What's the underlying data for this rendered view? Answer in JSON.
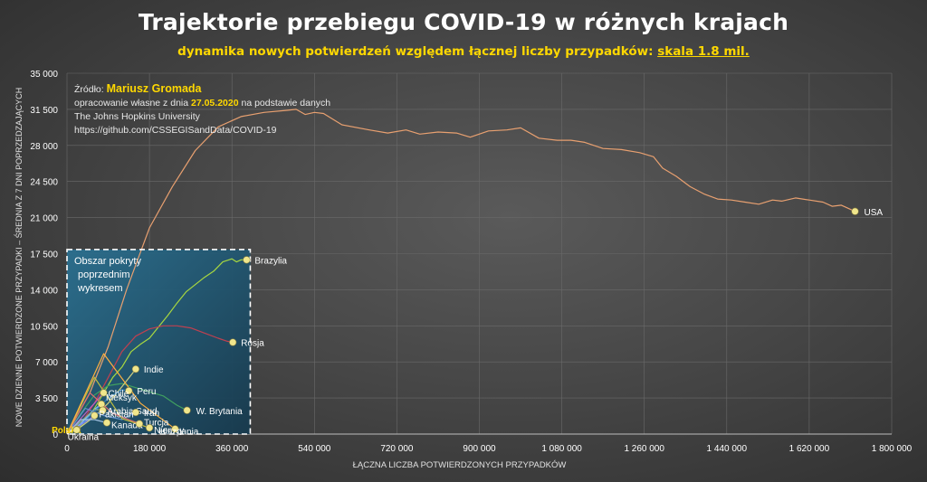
{
  "title": "Trajektorie przebiegu COVID-19 w różnych krajach",
  "subtitle_main": "dynamika nowych potwierdzeń względem łącznej liczby przypadków: ",
  "subtitle_scale": "skala 1.8 mil.",
  "source": {
    "label": "Źródło: ",
    "author": "Mariusz Gromada",
    "line2_pre": "opracowanie własne z dnia ",
    "date": "27.05.2020",
    "line2_post": " na podstawie danych",
    "line3": "The Johns Hopkins University",
    "line4": "https://github.com/CSSEGISandData/COVID-19"
  },
  "inset_label": [
    "Obszar pokryty",
    "poprzednim",
    "wykresem"
  ],
  "colors": {
    "usa": "#e8a070",
    "brazylia": "#a8d840",
    "rosja": "#c04050",
    "marker": "#f0e68c",
    "grid": "#6a6a6a",
    "inset_bg": "#1c5a78",
    "axis_text": "#ffffff"
  },
  "chart_data": {
    "type": "line",
    "xlabel": "ŁĄCZNA LICZBA POTWIERDZONYCH PRZYPADKÓW",
    "ylabel": "NOWE DZIENNE POTWIERDZONE PRZYPADKI – ŚREDNIA Z 7 DNI POPRZEDZAJĄCYCH",
    "xlim": [
      0,
      1800000
    ],
    "ylim": [
      0,
      35000
    ],
    "x_ticks": [
      0,
      180000,
      360000,
      540000,
      720000,
      900000,
      1080000,
      1260000,
      1440000,
      1620000,
      1800000
    ],
    "x_tick_labels": [
      "0",
      "180 000",
      "360 000",
      "540 000",
      "720 000",
      "900 000",
      "1 080 000",
      "1 260 000",
      "1 440 000",
      "1 620 000",
      "1 800 000"
    ],
    "y_ticks": [
      0,
      3500,
      7000,
      10500,
      14000,
      17500,
      21000,
      24500,
      28000,
      31500,
      35000
    ],
    "y_tick_labels": [
      "0",
      "3 500",
      "7 000",
      "10 500",
      "14 000",
      "17 500",
      "21 000",
      "24 500",
      "28 000",
      "31 500",
      "35 000"
    ],
    "grid": true,
    "series": [
      {
        "name": "USA",
        "color": "#e8a070",
        "x": [
          0,
          20000,
          50000,
          90000,
          130000,
          180000,
          230000,
          280000,
          330000,
          380000,
          430000,
          480000,
          500000,
          520000,
          540000,
          560000,
          600000,
          660000,
          700000,
          740000,
          770000,
          810000,
          850000,
          880000,
          920000,
          960000,
          990000,
          1030000,
          1070000,
          1100000,
          1130000,
          1170000,
          1210000,
          1250000,
          1280000,
          1300000,
          1330000,
          1360000,
          1390000,
          1420000,
          1450000,
          1480000,
          1510000,
          1540000,
          1560000,
          1590000,
          1620000,
          1650000,
          1670000,
          1690000,
          1700000,
          1720000
        ],
        "y": [
          0,
          1600,
          4000,
          8500,
          14000,
          20000,
          24000,
          27500,
          29800,
          30800,
          31200,
          31400,
          31500,
          31000,
          31200,
          31100,
          30000,
          29500,
          29200,
          29500,
          29100,
          29300,
          29200,
          28800,
          29400,
          29500,
          29700,
          28700,
          28500,
          28500,
          28300,
          27700,
          27600,
          27300,
          26900,
          25800,
          25000,
          24000,
          23300,
          22800,
          22700,
          22500,
          22300,
          22700,
          22600,
          22900,
          22700,
          22500,
          22100,
          22200,
          22000,
          21600
        ]
      },
      {
        "name": "Brazylia",
        "color": "#a8d840",
        "x": [
          0,
          20000,
          40000,
          60000,
          80000,
          100000,
          120000,
          140000,
          160000,
          180000,
          200000,
          220000,
          240000,
          260000,
          280000,
          300000,
          320000,
          340000,
          360000,
          370000,
          380000,
          392000
        ],
        "y": [
          0,
          500,
          1200,
          2500,
          4000,
          5500,
          6500,
          8000,
          8700,
          9300,
          10400,
          11500,
          12700,
          13800,
          14500,
          15200,
          15800,
          16700,
          17000,
          16700,
          16900,
          16900
        ]
      },
      {
        "name": "Rosja",
        "color": "#c04050",
        "x": [
          0,
          30000,
          60000,
          90000,
          120000,
          150000,
          180000,
          210000,
          240000,
          270000,
          300000,
          330000,
          350000,
          362000
        ],
        "y": [
          0,
          1000,
          3000,
          5500,
          8000,
          9500,
          10200,
          10500,
          10500,
          10300,
          9800,
          9300,
          9000,
          8900
        ]
      },
      {
        "name": "W. Brytania",
        "color": "#40a060",
        "x": [
          0,
          30000,
          60000,
          90000,
          120000,
          150000,
          180000,
          210000,
          240000,
          262000
        ],
        "y": [
          0,
          2000,
          3800,
          4700,
          4900,
          4500,
          4100,
          3700,
          2800,
          2300
        ]
      },
      {
        "name": "Indie",
        "color": "#d0d080",
        "x": [
          0,
          30000,
          60000,
          90000,
          120000,
          150000
        ],
        "y": [
          0,
          700,
          1700,
          3000,
          4600,
          6300
        ]
      },
      {
        "name": "Peru",
        "color": "#3080c0",
        "x": [
          0,
          30000,
          60000,
          90000,
          120000,
          135000
        ],
        "y": [
          0,
          900,
          2200,
          3500,
          4300,
          4200
        ]
      },
      {
        "name": "Chile",
        "color": "#c060c0",
        "x": [
          0,
          30000,
          60000,
          80000
        ],
        "y": [
          0,
          1500,
          3000,
          4000
        ]
      },
      {
        "name": "Meksyk",
        "color": "#80c0ff",
        "x": [
          0,
          30000,
          60000,
          75000
        ],
        "y": [
          0,
          1000,
          2400,
          2900
        ]
      },
      {
        "name": "Arabia Saud.",
        "color": "#90b090",
        "x": [
          0,
          30000,
          60000,
          78000
        ],
        "y": [
          0,
          1200,
          2400,
          2300
        ]
      },
      {
        "name": "Iran",
        "color": "#6090d0",
        "x": [
          0,
          40000,
          80000,
          120000,
          150000
        ],
        "y": [
          0,
          2500,
          1800,
          1400,
          2100
        ]
      },
      {
        "name": "Pakistan",
        "color": "#8080ff",
        "x": [
          0,
          30000,
          60000
        ],
        "y": [
          0,
          900,
          1800
        ]
      },
      {
        "name": "Polska",
        "color": "#ffd800",
        "x": [
          0,
          10000,
          20000,
          22000
        ],
        "y": [
          0,
          300,
          380,
          450
        ]
      },
      {
        "name": "Kanada",
        "color": "#a0c0e0",
        "x": [
          0,
          30000,
          60000,
          87000
        ],
        "y": [
          0,
          1400,
          1400,
          1100
        ]
      },
      {
        "name": "Turcja",
        "color": "#e07070",
        "x": [
          0,
          50000,
          100000,
          158000
        ],
        "y": [
          0,
          4000,
          2000,
          1000
        ]
      },
      {
        "name": "Niemcy",
        "color": "#c0c040",
        "x": [
          0,
          60000,
          120000,
          180000
        ],
        "y": [
          0,
          5500,
          1500,
          600
        ]
      },
      {
        "name": "Hiszpania",
        "color": "#ffb040",
        "x": [
          0,
          80000,
          160000,
          236000
        ],
        "y": [
          0,
          7800,
          3000,
          500
        ]
      },
      {
        "name": "Ukraina",
        "color": "#ffffff",
        "x": [
          0,
          10000,
          21000
        ],
        "y": [
          0,
          350,
          400
        ]
      }
    ],
    "labels_shown": [
      "USA",
      "Brazylia",
      "Rosja",
      "Indie",
      "Peru",
      "Chile",
      "W. Brytania",
      "Meksyk",
      "Arabia Saud.",
      "Pakistan",
      "Iran",
      "Polska",
      "Kanada",
      "Turcja",
      "Niemcy",
      "Hiszpania",
      "Ukraina"
    ]
  }
}
